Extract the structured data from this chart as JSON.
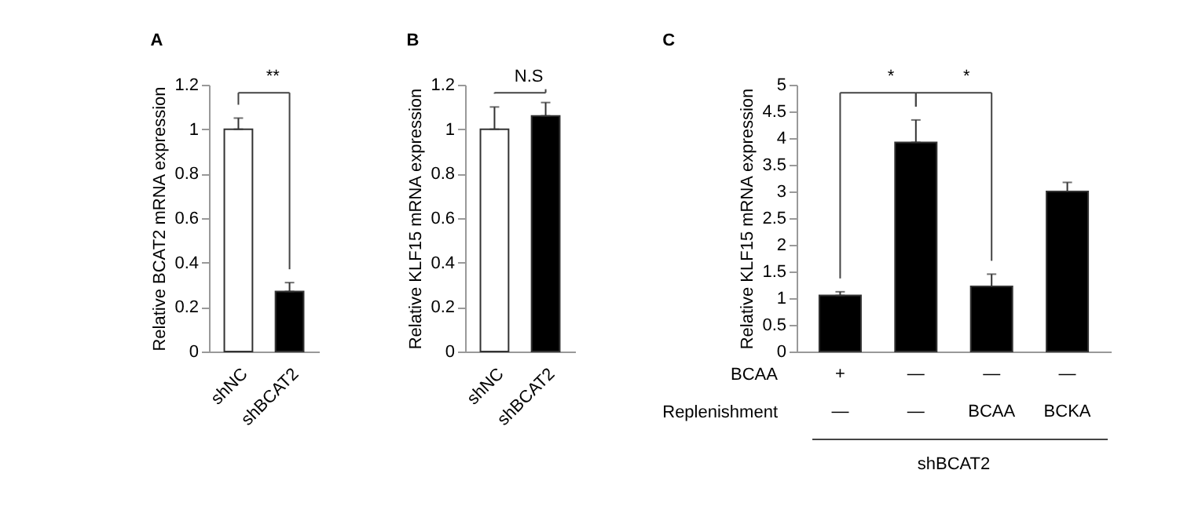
{
  "chart_data": [
    {
      "type": "bar",
      "title": "A",
      "categories": [
        "shNC",
        "shBCAT2"
      ],
      "values": [
        1.0,
        0.27
      ],
      "errors": [
        [
          1.0,
          1.05
        ],
        [
          0.27,
          0.31
        ]
      ],
      "colors": [
        "#ffffff",
        "#000000"
      ],
      "ylabel": "Relative  BCAT2 mRNA expression",
      "ylim": [
        0,
        1.2
      ],
      "yticks": [
        0,
        0.2,
        0.4,
        0.6,
        0.8,
        1,
        1.2
      ],
      "grid": false,
      "annotations": [
        "**"
      ]
    },
    {
      "type": "bar",
      "title": "B",
      "categories": [
        "shNC",
        "shBCAT2"
      ],
      "values": [
        1.0,
        1.06
      ],
      "errors": [
        [
          1.0,
          1.1
        ],
        [
          1.06,
          1.12
        ]
      ],
      "colors": [
        "#ffffff",
        "#000000"
      ],
      "ylabel": "Relative  KLF15 mRNA expression",
      "ylim": [
        0,
        1.2
      ],
      "yticks": [
        0,
        0.2,
        0.4,
        0.6,
        0.8,
        1,
        1.2
      ],
      "grid": false,
      "annotations": [
        "N.S"
      ]
    },
    {
      "type": "bar",
      "title": "C",
      "categories": [
        "+\n—",
        "—\n—",
        "—\nBCAA",
        "—\nBCKA"
      ],
      "values": [
        1.05,
        3.92,
        1.22,
        3.0
      ],
      "errors": [
        [
          1.05,
          1.12
        ],
        [
          3.92,
          4.34
        ],
        [
          1.22,
          1.45
        ],
        [
          3.0,
          3.17
        ]
      ],
      "colors": [
        "#000000",
        "#000000",
        "#000000",
        "#000000"
      ],
      "ylabel": "Relative  KLF15 mRNA expression",
      "ylim": [
        0,
        5
      ],
      "yticks": [
        0,
        0.5,
        1,
        1.5,
        2,
        2.5,
        3,
        3.5,
        4,
        4.5,
        5
      ],
      "grid": false,
      "annotations": [
        "*",
        "*",
        "BCAA",
        "Replenishment",
        "shBCAT2"
      ]
    }
  ]
}
